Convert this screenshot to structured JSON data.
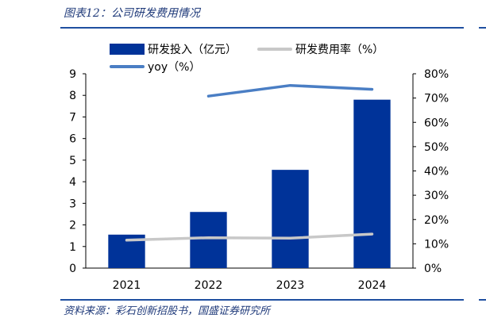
{
  "figure": {
    "title": "图表12：公司研发费用情况",
    "source": "资料来源：彩石创新招股书，国盛证券研究所"
  },
  "colors": {
    "bar": "#003399",
    "rd_rate_line": "#c8c8c8",
    "yoy_line": "#4a7ec4",
    "accent_rule": "#1f4fa0"
  },
  "chart_data": {
    "type": "bar",
    "title": "",
    "xlabel": "",
    "ylabel": "",
    "categories": [
      "2021",
      "2022",
      "2023",
      "2024"
    ],
    "ylim": [
      0,
      9
    ],
    "yticks": [
      "0",
      "1",
      "2",
      "3",
      "4",
      "5",
      "6",
      "7",
      "8",
      "9"
    ],
    "y2lim": [
      0,
      80
    ],
    "y2ticks": [
      "0%",
      "10%",
      "20%",
      "30%",
      "40%",
      "50%",
      "60%",
      "70%",
      "80%"
    ],
    "grid": false,
    "legend_placement": "top",
    "series": [
      {
        "name": "研发投入（亿元）",
        "type": "bar",
        "axis": "left",
        "values": [
          1.55,
          2.6,
          4.55,
          7.8
        ]
      },
      {
        "name": "研发费用率（%）",
        "type": "line",
        "axis": "right",
        "values": [
          11.5,
          12.5,
          12.3,
          14.0
        ]
      },
      {
        "name": "yoy（%）",
        "type": "line",
        "axis": "right",
        "values": [
          null,
          70.8,
          75.2,
          73.6
        ]
      }
    ]
  }
}
